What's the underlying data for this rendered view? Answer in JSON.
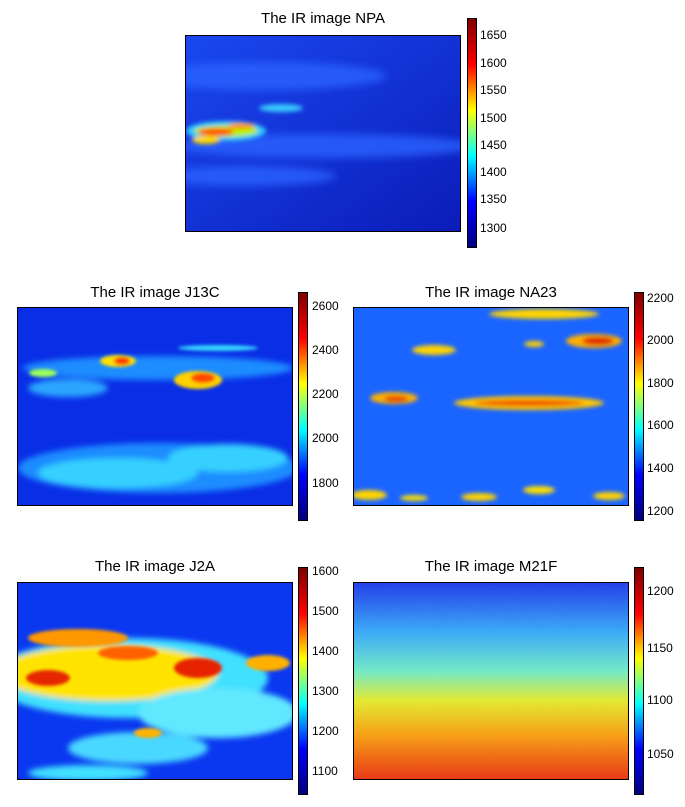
{
  "panels": [
    {
      "id": "npa",
      "title": "The IR image NPA",
      "ticks": [
        "1650",
        "1600",
        "1550",
        "1500",
        "1450",
        "1400",
        "1350",
        "1300"
      ]
    },
    {
      "id": "j13c",
      "title": "The IR image J13C",
      "ticks": [
        "2600",
        "2400",
        "2200",
        "2000",
        "1800"
      ]
    },
    {
      "id": "na23",
      "title": "The IR image NA23",
      "ticks": [
        "2200",
        "2000",
        "1800",
        "1600",
        "1400",
        "1200"
      ]
    },
    {
      "id": "j2a",
      "title": "The IR image J2A",
      "ticks": [
        "1600",
        "1500",
        "1400",
        "1300",
        "1200",
        "1100"
      ]
    },
    {
      "id": "m21f",
      "title": "The IR image M21F",
      "ticks": [
        "1200",
        "1150",
        "1100",
        "1050"
      ]
    }
  ]
}
